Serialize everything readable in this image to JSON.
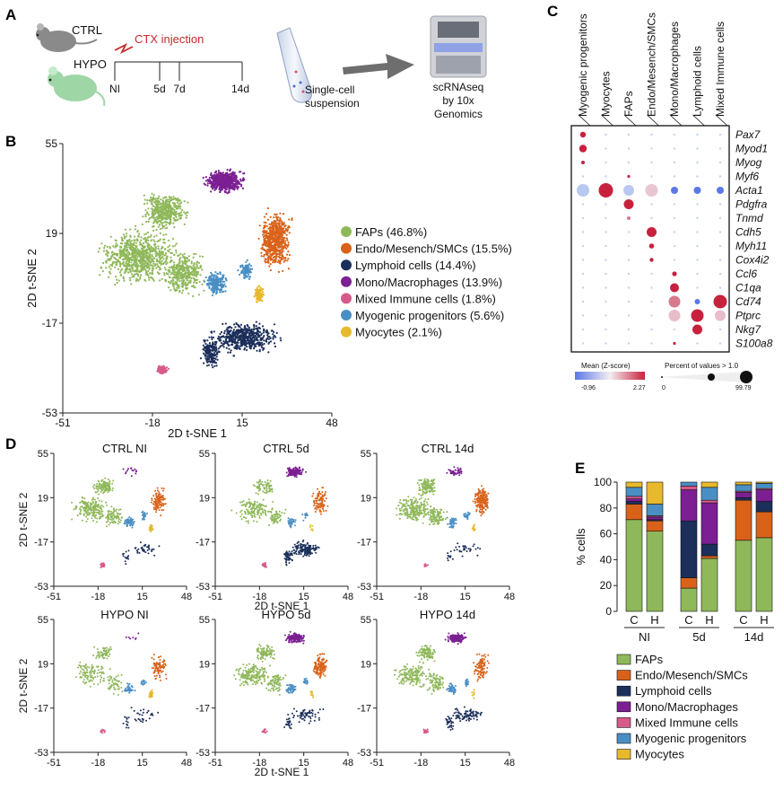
{
  "panel_labels": {
    "a": "A",
    "b": "B",
    "c": "C",
    "d": "D",
    "e": "E"
  },
  "panel_a": {
    "ctrl": "CTRL",
    "hypo": "HYPO",
    "injection": "CTX injection",
    "timepoints": [
      "NI",
      "5d",
      "7d",
      "14d"
    ],
    "suspension": [
      "Single-cell",
      "suspension"
    ],
    "sequencing": [
      "scRNAseq",
      "by 10x",
      "Genomics"
    ]
  },
  "colors": {
    "FAPs": "#8fb85a",
    "Endo": "#d9621a",
    "Lymphoid": "#1c2f5a",
    "Mono": "#7b1f93",
    "Mixed": "#d65a8a",
    "Myogenic": "#4a8fc4",
    "Myocytes": "#e8b92c"
  },
  "panel_b": {
    "xlabel": "2D t-SNE 1",
    "ylabel": "2D t-SNE 2",
    "xticks": [
      "-51",
      "-18",
      "15",
      "48"
    ],
    "yticks": [
      "55",
      "19",
      "-17",
      "-53"
    ],
    "legend": [
      "FAPs (46.8%)",
      "Endo/Mesench/SMCs (15.5%)",
      "Lymphoid cells (14.4%)",
      "Mono/Macrophages (13.9%)",
      "Mixed Immune cells (1.8%)",
      "Myogenic progenitors (5.6%)",
      "Myocytes (2.1%)"
    ]
  },
  "panel_c": {
    "columns": [
      "Myogenic progenitors",
      "Myocytes",
      "FAPs",
      "Endo/Mesench/SMCs",
      "Mono/Macrophages",
      "Lymphoid cells",
      "Mixed Immune cells"
    ],
    "genes": [
      "Pax7",
      "Myod1",
      "Myog",
      "Myf6",
      "Acta1",
      "Pdgfra",
      "Tnmd",
      "Cdh5",
      "Myh11",
      "Cox4i2",
      "Ccl6",
      "C1qa",
      "Cd74",
      "Ptprc",
      "Nkg7",
      "S100a8"
    ],
    "legend_mean": "Mean (Z-score)",
    "legend_pct": "Percent of values > 1.0",
    "mean_min": "-0.96",
    "mean_max": "2.27",
    "pct_min": "0",
    "pct_max": "99.79"
  },
  "panel_d": {
    "titles": [
      "CTRL NI",
      "CTRL 5d",
      "CTRL 14d",
      "HYPO NI",
      "HYPO 5d",
      "HYPO 14d"
    ],
    "xlabel": "2D t-SNE 1",
    "ylabel": "2D t-SNE 2",
    "xticks": [
      "-51",
      "-18",
      "15",
      "48"
    ],
    "yticks": [
      "55",
      "19",
      "-17",
      "-53"
    ]
  },
  "chart_data": {
    "type": "bar",
    "ylabel": "% cells",
    "ylim": [
      0,
      100
    ],
    "yticks": [
      "0",
      "20",
      "40",
      "60",
      "80",
      "100"
    ],
    "categories": [
      "C",
      "H",
      "C",
      "H",
      "C",
      "H"
    ],
    "groups": [
      "NI",
      "5d",
      "14d"
    ],
    "stacked": true,
    "series": [
      {
        "name": "FAPs",
        "color": "#8fb85a",
        "values": [
          71,
          62,
          18,
          41,
          55,
          57
        ]
      },
      {
        "name": "Endo/Mesench/SMCs",
        "color": "#d9621a",
        "values": [
          12,
          8,
          8,
          2,
          31,
          20
        ]
      },
      {
        "name": "Lymphoid cells",
        "color": "#1c2f5a",
        "values": [
          2,
          1,
          44,
          9,
          2,
          8
        ]
      },
      {
        "name": "Mono/Macrophages",
        "color": "#7b1f93",
        "values": [
          2,
          2,
          24,
          32,
          4,
          9
        ]
      },
      {
        "name": "Mixed Immune cells",
        "color": "#d65a8a",
        "values": [
          2,
          1,
          3,
          2,
          1,
          1
        ]
      },
      {
        "name": "Myogenic progenitors",
        "color": "#4a8fc4",
        "values": [
          7,
          9,
          3,
          10,
          5,
          4
        ]
      },
      {
        "name": "Myocytes",
        "color": "#e8b92c",
        "values": [
          4,
          17,
          0,
          4,
          2,
          1
        ]
      }
    ],
    "legend_labels": [
      "FAPs",
      "Endo/Mesench/SMCs",
      "Lymphoid cells",
      "Mono/Macrophages",
      "Mixed Immune cells",
      "Myogenic progenitors",
      "Myocytes"
    ]
  }
}
